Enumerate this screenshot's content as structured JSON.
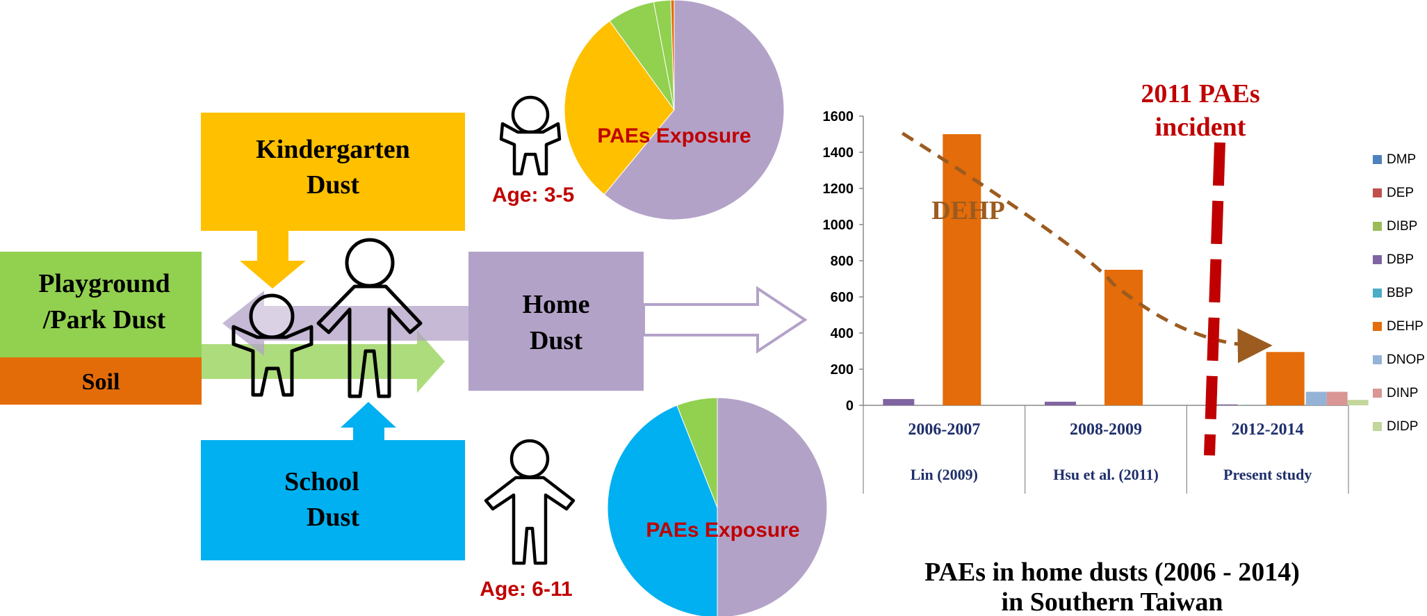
{
  "boxes": {
    "kindergarten": [
      "Kindergarten",
      "Dust"
    ],
    "playground": [
      "Playground",
      "/Park Dust"
    ],
    "soil": "Soil",
    "home": [
      "Home",
      "Dust"
    ],
    "school": [
      "School",
      "Dust"
    ]
  },
  "ages": {
    "young": "Age: 3-5",
    "older": "Age: 6-11"
  },
  "pies": {
    "label": "PAEs Exposure",
    "kindergarten_slices": [
      {
        "source": "home",
        "color": "#b3a2c8",
        "share": 0.61
      },
      {
        "source": "kindergarten",
        "color": "#ffc000",
        "share": 0.29
      },
      {
        "source": "playground",
        "color": "#92d050",
        "share": 0.07
      },
      {
        "source": "playground-2",
        "color": "#92d050",
        "share": 0.025
      },
      {
        "source": "soil",
        "color": "#e36c09",
        "share": 0.005
      }
    ],
    "school_slices": [
      {
        "source": "home",
        "color": "#b3a2c8",
        "share": 0.5
      },
      {
        "source": "school",
        "color": "#00b0f0",
        "share": 0.44
      },
      {
        "source": "playground",
        "color": "#92d050",
        "share": 0.06
      }
    ]
  },
  "chart_data": {
    "type": "bar",
    "title": "PAEs in home dusts (2006 - 2014)",
    "subtitle": "in Southern Taiwan",
    "categories": [
      "2006-2007",
      "2008-2009",
      "2012-2014"
    ],
    "category_studies": [
      "Lin (2009)",
      "Hsu et al. (2011)",
      "Present study"
    ],
    "ylim": [
      0,
      1600
    ],
    "yticks": [
      0,
      200,
      400,
      600,
      800,
      1000,
      1200,
      1400,
      1600
    ],
    "series": [
      {
        "name": "DMP",
        "color": "#4f81bd",
        "values": [
          0,
          0,
          1
        ]
      },
      {
        "name": "DEP",
        "color": "#c0504d",
        "values": [
          0,
          0,
          1
        ]
      },
      {
        "name": "DIBP",
        "color": "#9bbb59",
        "values": [
          0,
          0,
          2
        ]
      },
      {
        "name": "DBP",
        "color": "#8064a2",
        "values": [
          35,
          20,
          5
        ]
      },
      {
        "name": "BBP",
        "color": "#4bacc6",
        "values": [
          0,
          0,
          2
        ]
      },
      {
        "name": "DEHP",
        "color": "#e46c0a",
        "values": [
          1500,
          750,
          295
        ]
      },
      {
        "name": "DNOP",
        "color": "#95b3d7",
        "values": [
          0,
          0,
          75
        ]
      },
      {
        "name": "DINP",
        "color": "#d99694",
        "values": [
          0,
          0,
          75
        ]
      },
      {
        "name": "DIDP",
        "color": "#c3d69b",
        "values": [
          0,
          0,
          30
        ]
      }
    ],
    "trend_label": "DEHP",
    "trend_points": [
      1505,
      750,
      300
    ],
    "incident_label": [
      "2011 PAEs",
      "incident"
    ]
  }
}
